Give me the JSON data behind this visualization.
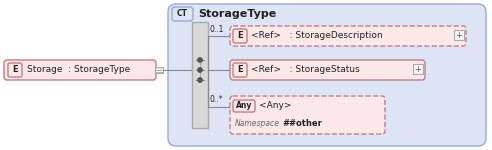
{
  "bg_color": "#ffffff",
  "outer_bg": "#dce4f5",
  "outer_bg_stroke": "#9baad0",
  "node_fill": "#fce8e8",
  "node_stroke": "#c08080",
  "dashed_stroke": "#c08080",
  "gray_rect_fill": "#d8d8d8",
  "gray_rect_stroke": "#aaaaaa",
  "ct_badge_fill": "#dce4f5",
  "ct_badge_stroke": "#9baad0",
  "e_badge_fill": "#fce8e8",
  "e_badge_stroke": "#c08080",
  "any_badge_fill": "#fce8e8",
  "any_badge_stroke": "#c08080",
  "line_color": "#888888",
  "text_color": "#222222",
  "italic_color": "#666666",
  "title": "StorageType",
  "main_label": "Storage  : StorageType",
  "ref1_label": "<Ref>   : StorageDescription",
  "ref2_label": "<Ref>   : StorageStatus",
  "any_label": "<Any>",
  "ns_label": "Namespace",
  "ns_value": "##other",
  "card1": "0..1",
  "card2": "0..*"
}
